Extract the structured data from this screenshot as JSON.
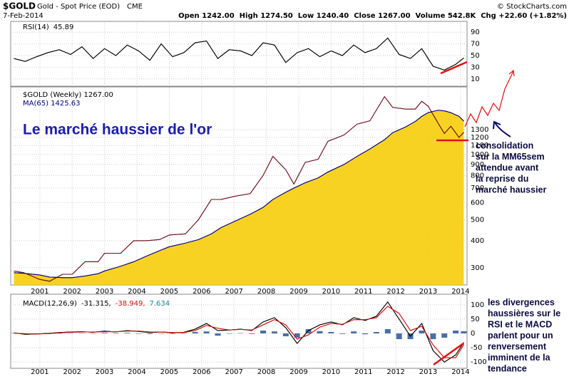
{
  "header": {
    "symbol": "$GOLD",
    "name": "Gold - Spot Price (EOD)",
    "exchange": "CME",
    "date": "7-Feb-2014",
    "stats": "Open 1242.00  High 1274.50  Low 1240.40  Close 1267.00  Volume 542.8K  Chg +22.60 (+1.82%)",
    "source": "© StockCharts.com"
  },
  "annotations": {
    "title": "Le marché haussier de l'or",
    "consolidation": [
      "consolidation",
      "sur la MM65sem",
      "attendue avant",
      "la reprise du",
      "marché haussier"
    ],
    "divergences": [
      "les divergences",
      "haussières sur le",
      "RSI et le MACD",
      "parlent pour un",
      "renversement",
      "imminent de la",
      "tendance"
    ]
  },
  "chart_data": [
    {
      "type": "line",
      "legend_text": [
        "RSI(14)",
        "45.89"
      ],
      "legend_colors": [
        "#000",
        "#000"
      ],
      "x": [
        2000.2,
        2000.55,
        2000.9,
        2001.25,
        2001.6,
        2001.95,
        2002.3,
        2002.65,
        2003.0,
        2003.35,
        2003.7,
        2004.05,
        2004.4,
        2004.75,
        2005.1,
        2005.45,
        2005.8,
        2006.15,
        2006.5,
        2006.85,
        2007.2,
        2007.55,
        2007.9,
        2008.25,
        2008.6,
        2008.95,
        2009.3,
        2009.65,
        2010.0,
        2010.35,
        2010.7,
        2011.05,
        2011.4,
        2011.75,
        2012.1,
        2012.45,
        2012.8,
        2013.15,
        2013.5,
        2013.85,
        2014.1
      ],
      "series": [
        {
          "name": "RSI(14)",
          "color": "#000000",
          "values": [
            45,
            40,
            48,
            55,
            60,
            52,
            65,
            45,
            62,
            50,
            68,
            58,
            42,
            70,
            48,
            55,
            72,
            75,
            45,
            60,
            58,
            50,
            72,
            68,
            38,
            55,
            62,
            48,
            58,
            50,
            68,
            55,
            62,
            80,
            52,
            45,
            62,
            32,
            25,
            35,
            45.89
          ]
        }
      ],
      "xlim": [
        2000.1,
        2014.2
      ],
      "xticks": [
        2001,
        2002,
        2003,
        2004,
        2005,
        2006,
        2007,
        2008,
        2009,
        2010,
        2011,
        2012,
        2013,
        2014
      ],
      "ylim": [
        0,
        100
      ],
      "yticks": [
        10,
        30,
        50,
        70,
        90
      ],
      "grid": true
    },
    {
      "type": "line",
      "log_scale": true,
      "legend_text": [
        "$GOLD (Weekly) 1267.00",
        "MA(65) 1425.63"
      ],
      "legend_colors": [
        "#000",
        "#000080"
      ],
      "fill_color": "#f7cd0a",
      "x": [
        2000.2,
        2000.5,
        2001.0,
        2001.3,
        2001.7,
        2002.0,
        2002.4,
        2002.8,
        2003.0,
        2003.5,
        2003.9,
        2004.3,
        2004.7,
        2005.0,
        2005.5,
        2005.9,
        2006.3,
        2006.6,
        2007.0,
        2007.5,
        2007.9,
        2008.2,
        2008.6,
        2008.85,
        2009.2,
        2009.6,
        2009.9,
        2010.4,
        2010.8,
        2011.2,
        2011.65,
        2011.9,
        2012.3,
        2012.6,
        2012.8,
        2013.0,
        2013.3,
        2013.5,
        2013.7,
        2013.95,
        2014.1
      ],
      "series": [
        {
          "name": "$GOLD (Weekly)",
          "color": "#6b0f1a",
          "values": [
            290,
            285,
            265,
            260,
            280,
            280,
            320,
            320,
            350,
            350,
            400,
            400,
            405,
            425,
            430,
            500,
            620,
            620,
            640,
            660,
            800,
            980,
            850,
            730,
            920,
            950,
            1150,
            1230,
            1380,
            1430,
            1850,
            1650,
            1620,
            1620,
            1760,
            1670,
            1400,
            1250,
            1350,
            1200,
            1267
          ]
        },
        {
          "name": "MA(65)",
          "color": "#000080",
          "values": [
            285,
            283,
            278,
            272,
            270,
            270,
            275,
            282,
            290,
            305,
            320,
            340,
            360,
            375,
            390,
            405,
            430,
            460,
            490,
            530,
            570,
            620,
            670,
            700,
            740,
            780,
            830,
            900,
            980,
            1060,
            1170,
            1260,
            1340,
            1420,
            1500,
            1560,
            1600,
            1590,
            1560,
            1500,
            1425.63
          ]
        }
      ],
      "xlim": [
        2000.1,
        2014.2
      ],
      "xticks": [
        2001,
        2002,
        2003,
        2004,
        2005,
        2006,
        2007,
        2008,
        2009,
        2010,
        2011,
        2012,
        2013,
        2014
      ],
      "ylim": [
        250,
        2050
      ],
      "yticks": [
        300,
        400,
        500,
        600,
        700,
        800,
        900,
        1000,
        1100,
        1200,
        1300
      ],
      "grid": true
    },
    {
      "type": "line",
      "legend_text": [
        "MACD(12,26,9)",
        "-31.315,",
        "-38.949,",
        "7.634"
      ],
      "legend_colors": [
        "#000",
        "#000",
        "#d01010",
        "#1a8a8a"
      ],
      "x": [
        2000.2,
        2000.55,
        2000.9,
        2001.25,
        2001.6,
        2001.95,
        2002.3,
        2002.65,
        2003.0,
        2003.35,
        2003.7,
        2004.05,
        2004.4,
        2004.75,
        2005.1,
        2005.45,
        2005.8,
        2006.15,
        2006.5,
        2006.85,
        2007.2,
        2007.55,
        2007.9,
        2008.25,
        2008.6,
        2008.95,
        2009.3,
        2009.65,
        2010.0,
        2010.35,
        2010.7,
        2011.05,
        2011.4,
        2011.75,
        2012.1,
        2012.45,
        2012.8,
        2013.15,
        2013.5,
        2013.85,
        2014.1
      ],
      "series": [
        {
          "name": "Histogram",
          "type": "bar",
          "color": "#4a6fa5",
          "values": [
            1,
            -2,
            0,
            1,
            1,
            1,
            1,
            -1,
            2,
            -1,
            2,
            -1,
            -2,
            0,
            -1,
            1,
            5,
            7,
            -8,
            0,
            1,
            -2,
            10,
            7,
            -10,
            -15,
            15,
            8,
            5,
            -2,
            7,
            -3,
            5,
            15,
            -20,
            -20,
            10,
            -20,
            -15,
            10,
            7.634
          ]
        },
        {
          "name": "MACD",
          "color": "#000000",
          "values": [
            2,
            -3,
            -2,
            0,
            3,
            5,
            6,
            4,
            8,
            5,
            10,
            7,
            3,
            5,
            2,
            4,
            15,
            35,
            10,
            12,
            15,
            10,
            40,
            55,
            20,
            -35,
            10,
            30,
            40,
            30,
            55,
            45,
            60,
            110,
            50,
            -10,
            35,
            -60,
            -100,
            -75,
            -31.315
          ]
        },
        {
          "name": "Signal",
          "color": "#d01010",
          "values": [
            1,
            -1,
            -2,
            -1,
            2,
            4,
            5,
            5,
            6,
            6,
            8,
            8,
            5,
            5,
            3,
            3,
            10,
            28,
            18,
            12,
            14,
            12,
            30,
            48,
            30,
            -20,
            -5,
            22,
            35,
            32,
            48,
            48,
            55,
            95,
            70,
            10,
            25,
            -40,
            -85,
            -85,
            -38.949
          ]
        }
      ],
      "xlim": [
        2000.1,
        2014.2
      ],
      "xticks": [
        2001,
        2002,
        2003,
        2004,
        2005,
        2006,
        2007,
        2008,
        2009,
        2010,
        2011,
        2012,
        2013,
        2014
      ],
      "ylim": [
        -117,
        132
      ],
      "yticks": [
        -100,
        -50,
        0,
        50,
        100
      ],
      "grid": true
    }
  ]
}
